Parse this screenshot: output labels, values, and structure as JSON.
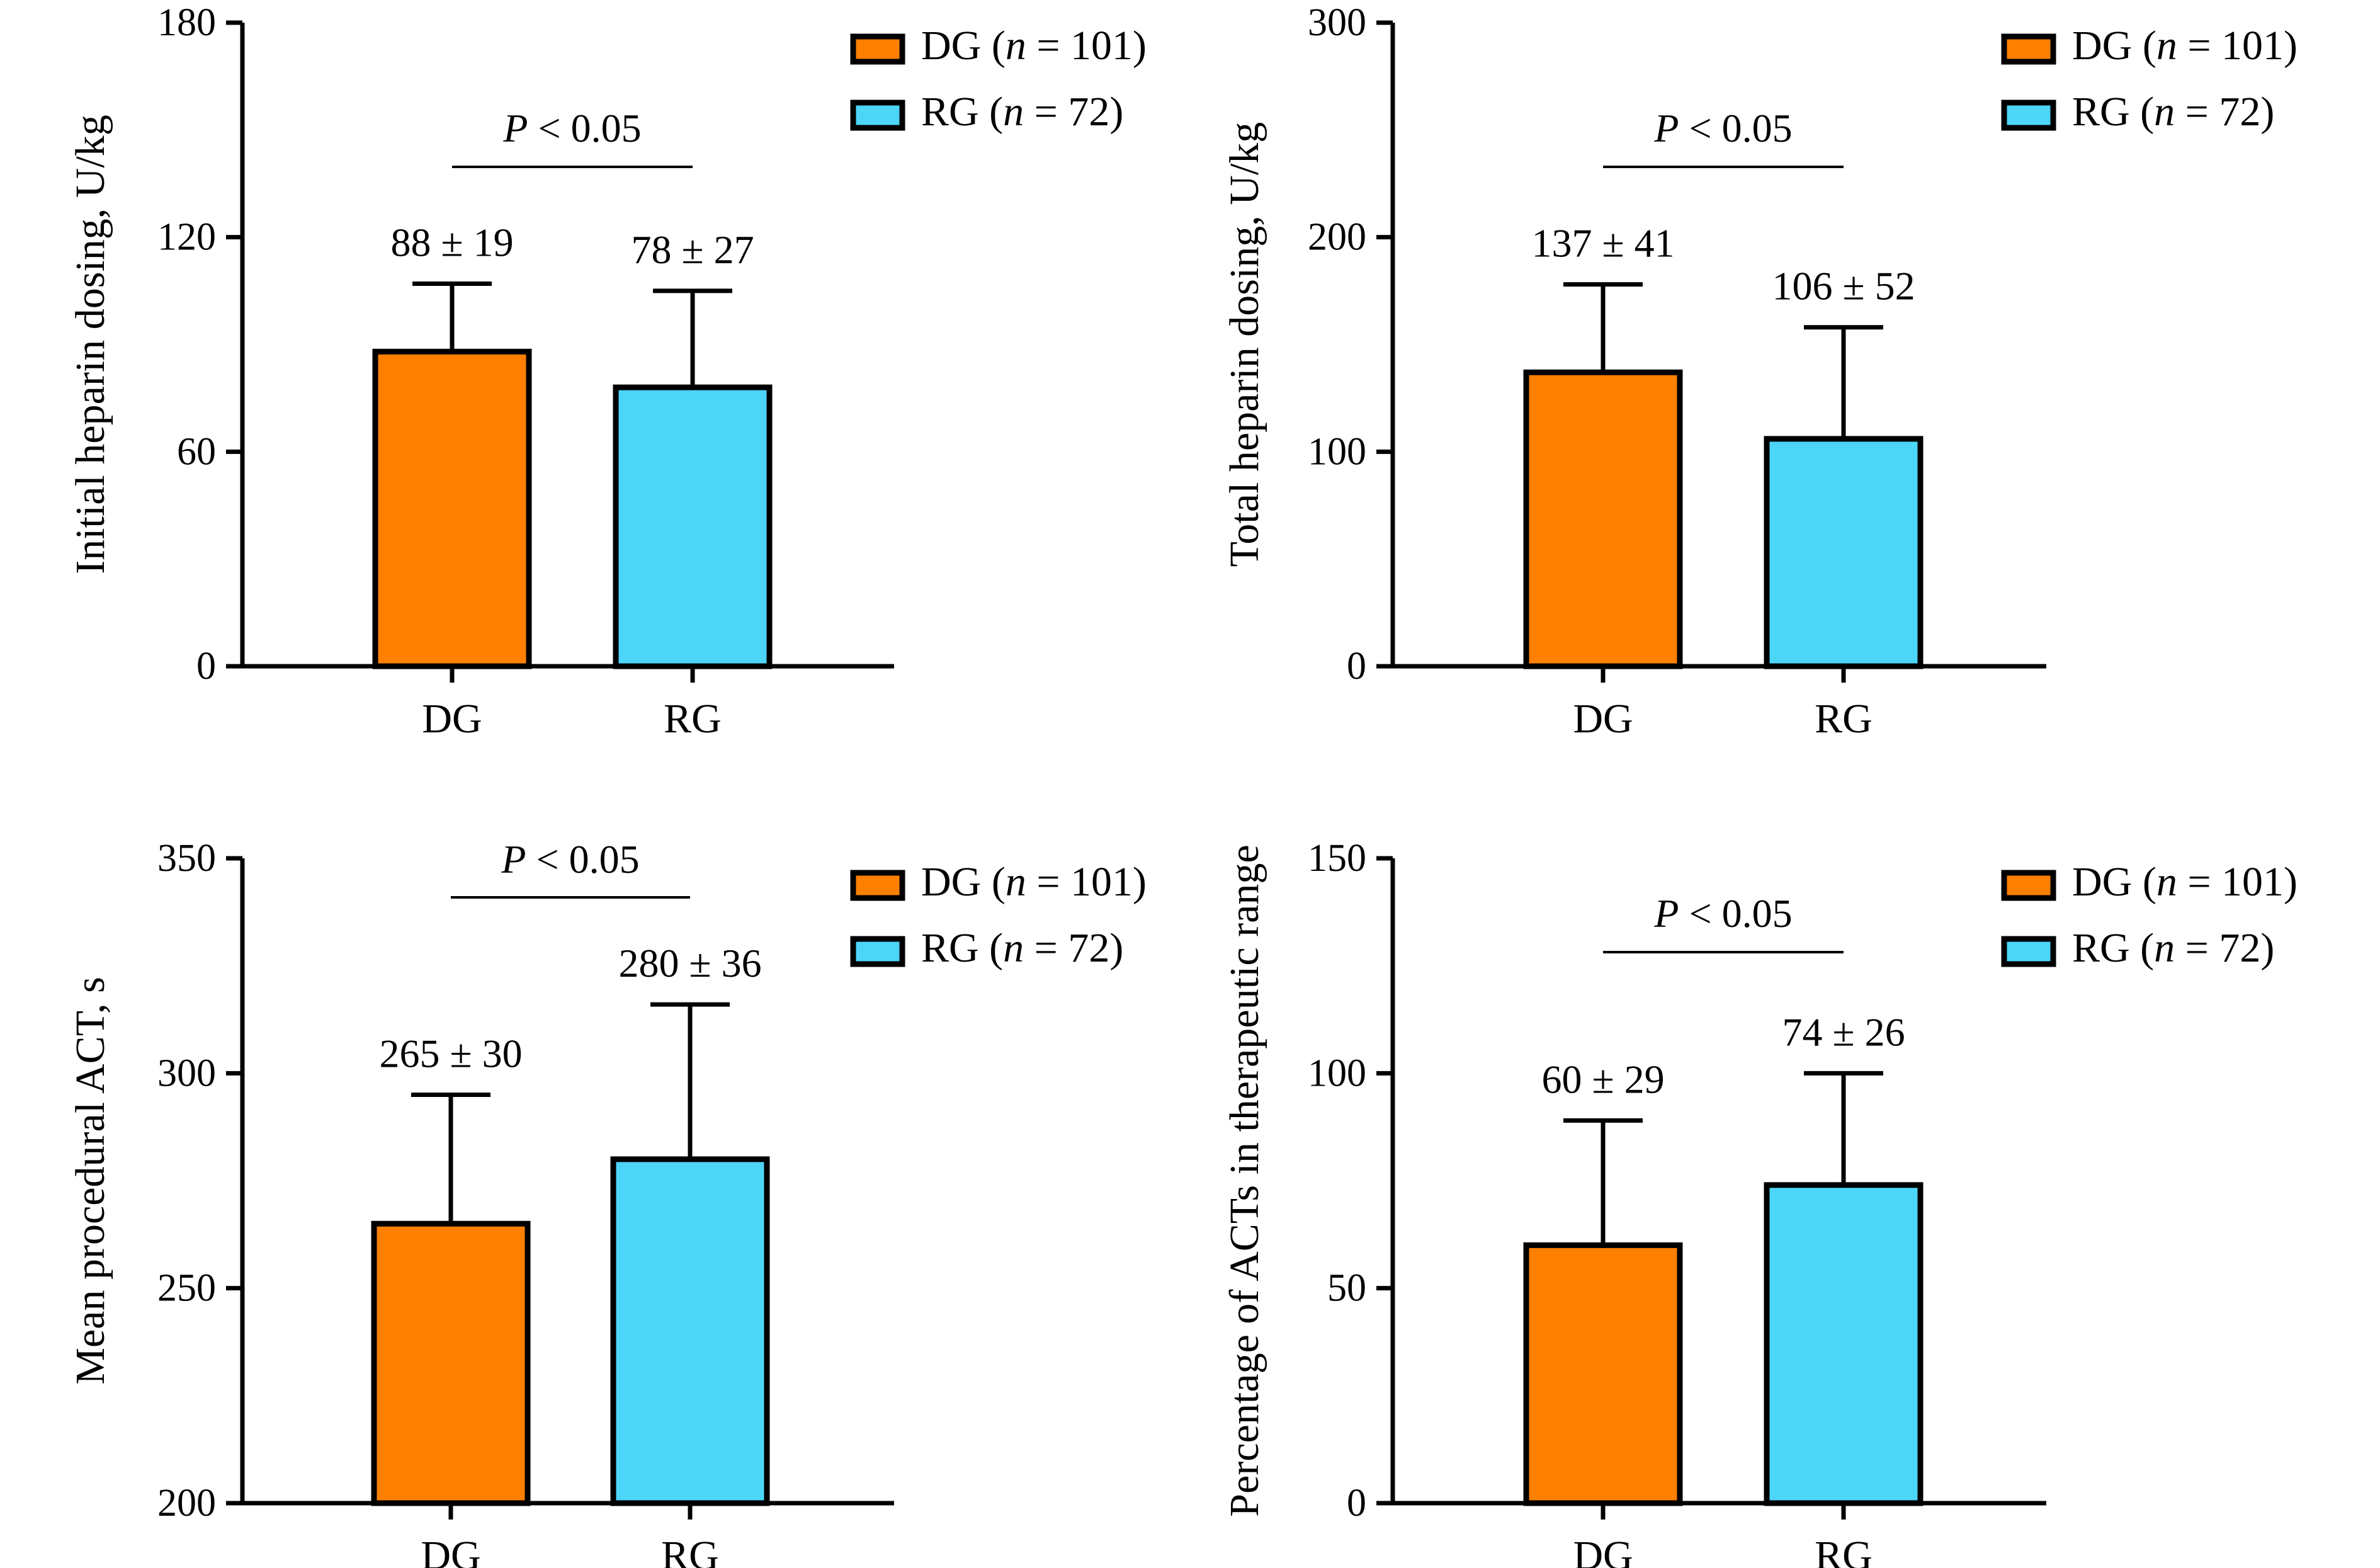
{
  "chart_data": [
    {
      "type": "bar",
      "categories": [
        "DG",
        "RG"
      ],
      "values": [
        88,
        78
      ],
      "errors": [
        19,
        27
      ],
      "data_labels": [
        "88 ± 19",
        "78 ± 27"
      ],
      "ylabel": "Initial heparin dosing, U/kg",
      "ylim": [
        0,
        180
      ],
      "yticks": [
        0,
        60,
        120,
        180
      ],
      "significance": "< 0.05",
      "legend": [
        {
          "group": "DG",
          "n_sym": "n",
          "rest": " = 101)",
          "color": "#FF8000"
        },
        {
          "group": "RG",
          "n_sym": "n",
          "rest": " = 72)",
          "color": "#4DD5F8"
        }
      ],
      "legend_position": "top-right"
    },
    {
      "type": "bar",
      "categories": [
        "DG",
        "RG"
      ],
      "values": [
        137,
        106
      ],
      "errors": [
        41,
        52
      ],
      "data_labels": [
        "137 ± 41",
        "106 ± 52"
      ],
      "ylabel": "Total heparin dosing, U/kg",
      "ylim": [
        0,
        300
      ],
      "yticks": [
        0,
        100,
        200,
        300
      ],
      "significance": "< 0.05",
      "legend": [
        {
          "group": "DG",
          "n_sym": "n",
          "rest": " = 101)",
          "color": "#FF8000"
        },
        {
          "group": "RG",
          "n_sym": "n",
          "rest": " = 72)",
          "color": "#4DD5F8"
        }
      ],
      "legend_position": "top-right"
    },
    {
      "type": "bar",
      "categories": [
        "DG",
        "RG"
      ],
      "values": [
        265,
        280
      ],
      "errors": [
        30,
        36
      ],
      "data_labels": [
        "265 ± 30",
        "280 ± 36"
      ],
      "ylabel": "Mean procedural ACT, s",
      "ylim": [
        200,
        350
      ],
      "yticks": [
        200,
        250,
        300,
        350
      ],
      "significance": "< 0.05",
      "legend": [
        {
          "group": "DG",
          "n_sym": "n",
          "rest": " = 101)",
          "color": "#FF8000"
        },
        {
          "group": "RG",
          "n_sym": "n",
          "rest": " = 72)",
          "color": "#4DD5F8"
        }
      ],
      "legend_position": "top-right"
    },
    {
      "type": "bar",
      "categories": [
        "DG",
        "RG"
      ],
      "values": [
        60,
        74
      ],
      "errors": [
        29,
        26
      ],
      "data_labels": [
        "60 ± 29",
        "74 ± 26"
      ],
      "ylabel": "Percentage of ACTs in therapeutic range",
      "ylim": [
        0,
        150
      ],
      "yticks": [
        0,
        50,
        100,
        150
      ],
      "significance": "< 0.05",
      "legend": [
        {
          "group": "DG",
          "n_sym": "n",
          "rest": " = 101)",
          "color": "#FF8000"
        },
        {
          "group": "RG",
          "n_sym": "n",
          "rest": " = 72)",
          "color": "#4DD5F8"
        }
      ],
      "legend_position": "top-right"
    }
  ]
}
